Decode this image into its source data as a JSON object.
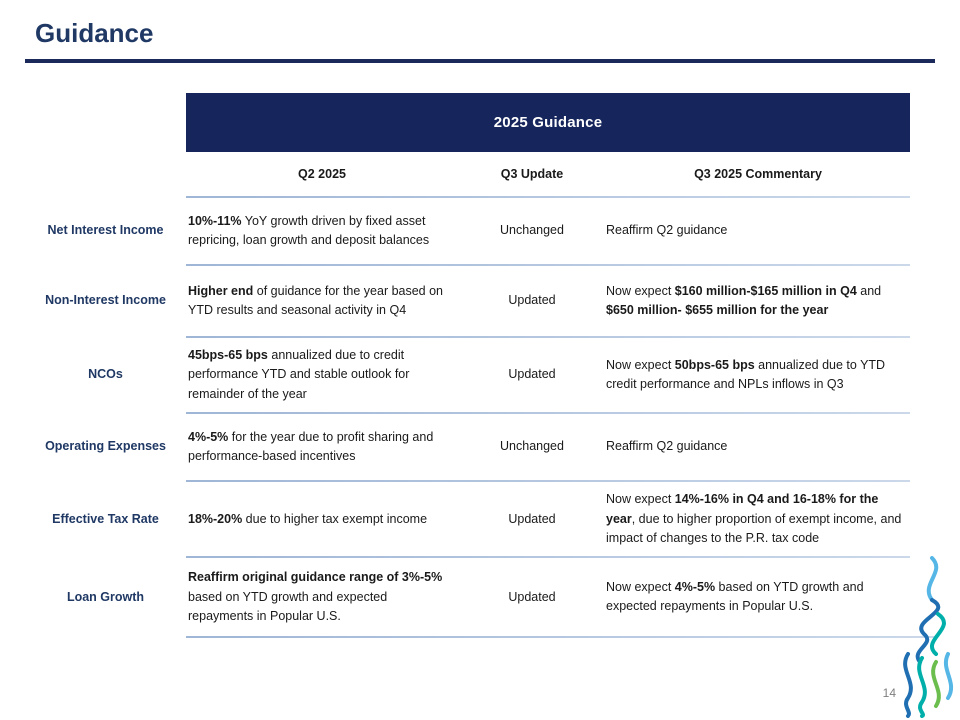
{
  "slide": {
    "title": "Guidance",
    "page_number": "14"
  },
  "colors": {
    "brand_navy": "#16255B",
    "label_navy": "#1F3864",
    "separator_blue": "#9FB6D6",
    "logo_light_blue": "#56B7E6",
    "logo_blue": "#1F6FB2",
    "logo_teal": "#00AFAA",
    "logo_green": "#6BBE4E"
  },
  "icons": {
    "logo": "decorative-wave-logo"
  },
  "table": {
    "banner": "2025 Guidance",
    "columns": [
      "Q2 2025",
      "Q3 Update",
      "Q3 2025 Commentary"
    ],
    "rows": [
      {
        "label": "Net Interest Income",
        "q2": [
          {
            "t": "10%-11%",
            "b": true
          },
          {
            "t": " YoY growth driven by fixed asset repricing, loan growth and deposit balances",
            "b": false
          }
        ],
        "status": "Unchanged",
        "commentary": [
          {
            "t": "Reaffirm Q2 guidance",
            "b": false
          }
        ]
      },
      {
        "label": "Non-Interest Income",
        "q2": [
          {
            "t": "Higher end",
            "b": true
          },
          {
            "t": " of guidance for the year based on YTD results and seasonal activity in Q4",
            "b": false
          }
        ],
        "status": "Updated",
        "commentary": [
          {
            "t": "Now expect ",
            "b": false
          },
          {
            "t": "$160 million-$165 million in Q4",
            "b": true
          },
          {
            "t": " and ",
            "b": false
          },
          {
            "t": "$650 million- $655 million for the year",
            "b": true
          }
        ]
      },
      {
        "label": "NCOs",
        "q2": [
          {
            "t": "45bps-65 bps",
            "b": true
          },
          {
            "t": " annualized due to credit performance YTD and stable outlook for remainder of the year",
            "b": false
          }
        ],
        "status": "Updated",
        "commentary": [
          {
            "t": "Now expect ",
            "b": false
          },
          {
            "t": "50bps-65 bps",
            "b": true
          },
          {
            "t": " annualized due to YTD credit performance and NPLs inflows in Q3",
            "b": false
          }
        ]
      },
      {
        "label": "Operating Expenses",
        "q2": [
          {
            "t": "4%-5%",
            "b": true
          },
          {
            "t": " for the year due to profit sharing and performance-based incentives",
            "b": false
          }
        ],
        "status": "Unchanged",
        "commentary": [
          {
            "t": "Reaffirm Q2 guidance",
            "b": false
          }
        ]
      },
      {
        "label": "Effective Tax Rate",
        "q2": [
          {
            "t": "18%-20%",
            "b": true
          },
          {
            "t": " due to higher tax exempt income",
            "b": false
          }
        ],
        "status": "Updated",
        "commentary": [
          {
            "t": "Now expect ",
            "b": false
          },
          {
            "t": "14%-16% in Q4 and 16-18% for the year",
            "b": true
          },
          {
            "t": ", due to higher proportion of exempt income, and impact of changes to the P.R. tax code",
            "b": false
          }
        ]
      },
      {
        "label": "Loan Growth",
        "q2": [
          {
            "t": "Reaffirm original guidance range of 3%-5%",
            "b": true
          },
          {
            "t": " based on YTD growth and expected repayments in Popular U.S.",
            "b": false
          }
        ],
        "status": "Updated",
        "commentary": [
          {
            "t": "Now expect ",
            "b": false
          },
          {
            "t": "4%-5%",
            "b": true
          },
          {
            "t": " based on YTD growth and expected repayments in Popular U.S.",
            "b": false
          }
        ]
      }
    ]
  }
}
